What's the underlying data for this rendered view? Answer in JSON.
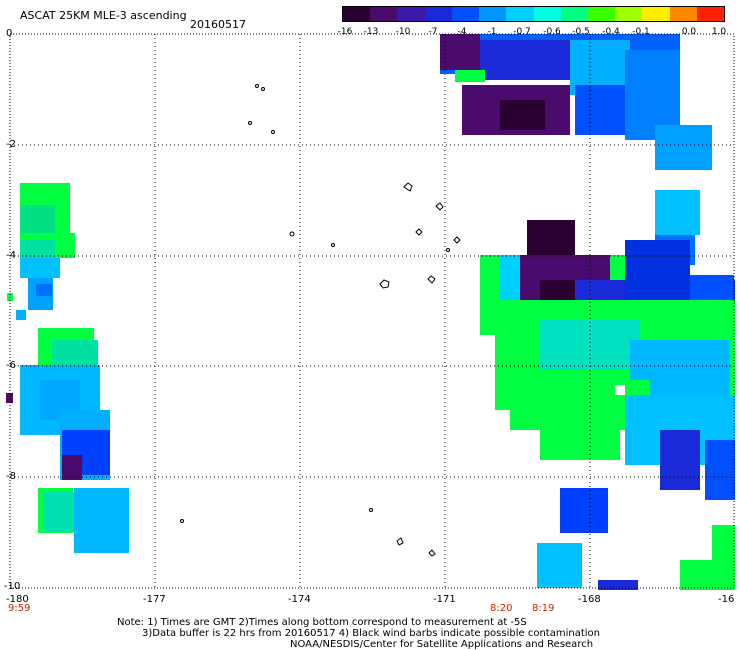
{
  "header": {
    "title": "ASCAT 25KM MLE-3 ascending",
    "date": "20160517"
  },
  "colorbar": {
    "labels": [
      "-16",
      "-13",
      "-10",
      "-7",
      "-4",
      "-1",
      "-0.7",
      "-0.6",
      "-0.5",
      "-0.4",
      "-0.1",
      "0.0",
      "1.0"
    ],
    "colors": [
      "#2a0033",
      "#4b0a6e",
      "#3a1aa8",
      "#1a2ad8",
      "#0050ff",
      "#0096ff",
      "#00d0ff",
      "#00ffe0",
      "#00ff80",
      "#3cff00",
      "#a0ff00",
      "#ffee00",
      "#ff8800",
      "#ff2200"
    ]
  },
  "map": {
    "x_ticks": [
      "-180",
      "-177",
      "-174",
      "-171",
      "-168",
      "-16"
    ],
    "y_ticks": [
      "0",
      "-2",
      "-4",
      "-6",
      "-8",
      "-10"
    ],
    "time_labels": {
      "left": "9:59",
      "mid1": "8:20",
      "mid2": "8:19"
    },
    "x_range": [
      -180,
      -165
    ],
    "y_range": [
      -10,
      0
    ]
  },
  "footer": {
    "line1": "Note: 1) Times are GMT 2)Times along bottom correspond to measurement at -5S",
    "line2": "3)Data buffer is 22 hrs from 20160517 4) Black wind barbs indicate possible contamination",
    "line3": "NOAA/NESDIS/Center for Satellite Applications and Research"
  }
}
